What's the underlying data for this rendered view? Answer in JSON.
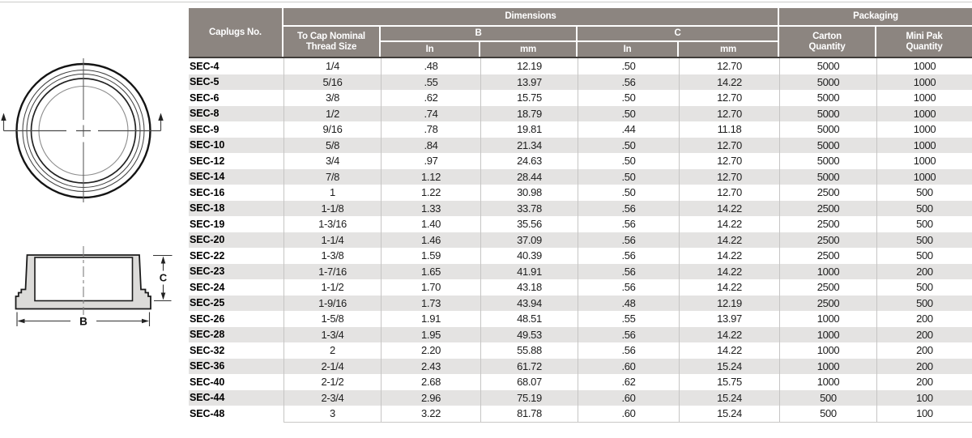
{
  "table": {
    "header": {
      "caplugs_no": "Caplugs No.",
      "dimensions": "Dimensions",
      "packaging": "Packaging",
      "thread_size": "To Cap Nominal Thread Size",
      "b": "B",
      "c": "C",
      "in_b": "In",
      "mm_b": "mm",
      "in_c": "In",
      "mm_c": "mm",
      "carton_qty": "Carton Quantity",
      "mini_pak_qty": "Mini Pak Quantity"
    },
    "rows": [
      [
        "SEC-4",
        "1/4",
        ".48",
        "12.19",
        ".50",
        "12.70",
        "5000",
        "1000"
      ],
      [
        "SEC-5",
        "5/16",
        ".55",
        "13.97",
        ".56",
        "14.22",
        "5000",
        "1000"
      ],
      [
        "SEC-6",
        "3/8",
        ".62",
        "15.75",
        ".50",
        "12.70",
        "5000",
        "1000"
      ],
      [
        "SEC-8",
        "1/2",
        ".74",
        "18.79",
        ".50",
        "12.70",
        "5000",
        "1000"
      ],
      [
        "SEC-9",
        "9/16",
        ".78",
        "19.81",
        ".44",
        "11.18",
        "5000",
        "1000"
      ],
      [
        "SEC-10",
        "5/8",
        ".84",
        "21.34",
        ".50",
        "12.70",
        "5000",
        "1000"
      ],
      [
        "SEC-12",
        "3/4",
        ".97",
        "24.63",
        ".50",
        "12.70",
        "5000",
        "1000"
      ],
      [
        "SEC-14",
        "7/8",
        "1.12",
        "28.44",
        ".50",
        "12.70",
        "5000",
        "1000"
      ],
      [
        "SEC-16",
        "1",
        "1.22",
        "30.98",
        ".50",
        "12.70",
        "2500",
        "500"
      ],
      [
        "SEC-18",
        "1-1/8",
        "1.33",
        "33.78",
        ".56",
        "14.22",
        "2500",
        "500"
      ],
      [
        "SEC-19",
        "1-3/16",
        "1.40",
        "35.56",
        ".56",
        "14.22",
        "2500",
        "500"
      ],
      [
        "SEC-20",
        "1-1/4",
        "1.46",
        "37.09",
        ".56",
        "14.22",
        "2500",
        "500"
      ],
      [
        "SEC-22",
        "1-3/8",
        "1.59",
        "40.39",
        ".56",
        "14.22",
        "2500",
        "500"
      ],
      [
        "SEC-23",
        "1-7/16",
        "1.65",
        "41.91",
        ".56",
        "14.22",
        "1000",
        "200"
      ],
      [
        "SEC-24",
        "1-1/2",
        "1.70",
        "43.18",
        ".56",
        "14.22",
        "2500",
        "500"
      ],
      [
        "SEC-25",
        "1-9/16",
        "1.73",
        "43.94",
        ".48",
        "12.19",
        "2500",
        "500"
      ],
      [
        "SEC-26",
        "1-5/8",
        "1.91",
        "48.51",
        ".55",
        "13.97",
        "1000",
        "200"
      ],
      [
        "SEC-28",
        "1-3/4",
        "1.95",
        "49.53",
        ".56",
        "14.22",
        "1000",
        "200"
      ],
      [
        "SEC-32",
        "2",
        "2.20",
        "55.88",
        ".56",
        "14.22",
        "1000",
        "200"
      ],
      [
        "SEC-36",
        "2-1/4",
        "2.43",
        "61.72",
        ".60",
        "15.24",
        "1000",
        "200"
      ],
      [
        "SEC-40",
        "2-1/2",
        "2.68",
        "68.07",
        ".62",
        "15.75",
        "1000",
        "200"
      ],
      [
        "SEC-44",
        "2-3/4",
        "2.96",
        "75.19",
        ".60",
        "15.24",
        "500",
        "100"
      ],
      [
        "SEC-48",
        "3",
        "3.22",
        "81.78",
        ".60",
        "15.24",
        "500",
        "100"
      ]
    ]
  },
  "diagrams": {
    "dim_b_label": "B",
    "dim_c_label": "C"
  },
  "colors": {
    "header_bg": "#8c8580",
    "row_stripe": "#e4e3e2",
    "header_rule": "#403d3a",
    "part_fill": "#dcdbd9"
  }
}
